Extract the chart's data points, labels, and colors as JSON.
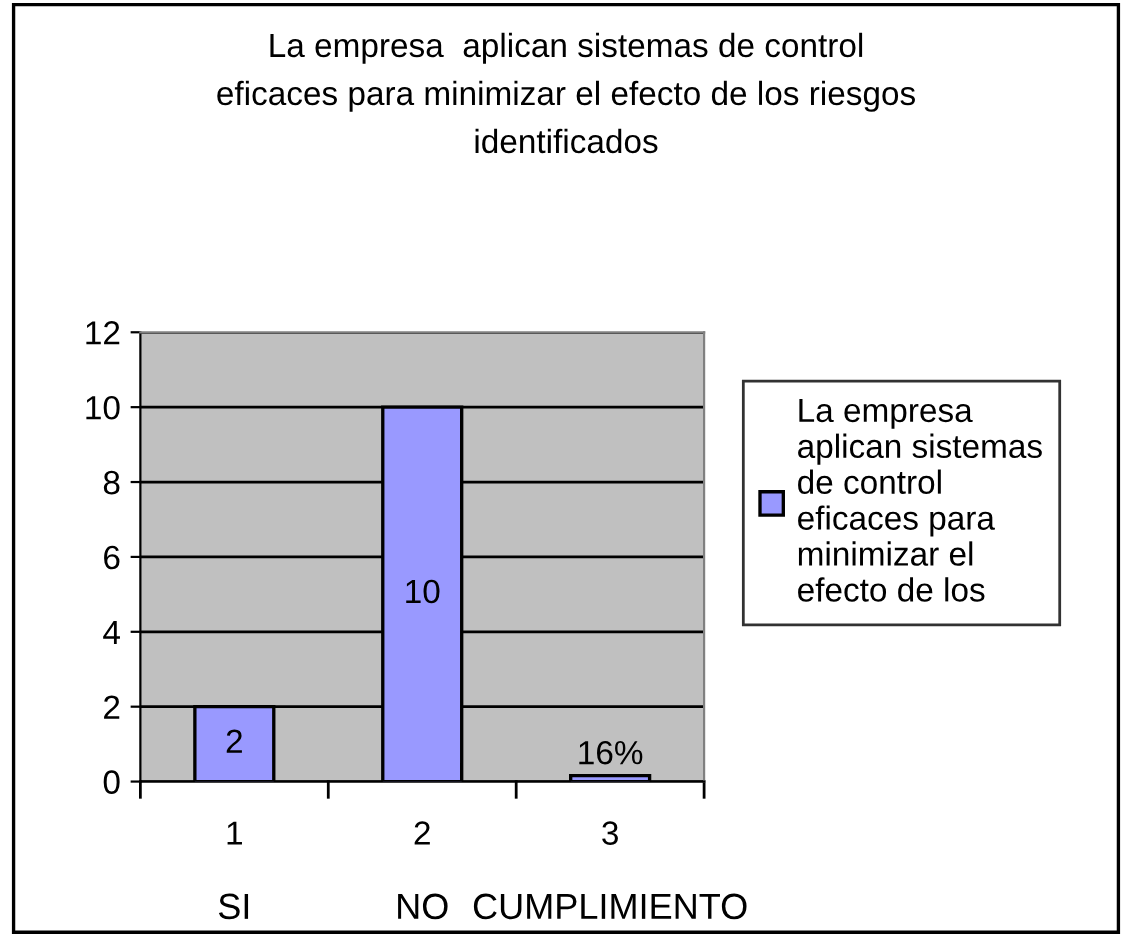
{
  "chart_data": {
    "type": "bar",
    "title": "La empresa  aplican sistemas de control\neficaces para minimizar el efecto de los riesgos\nidentificados",
    "categories": [
      "1",
      "2",
      "3"
    ],
    "series": [
      {
        "name": "La empresa\naplican sistemas\nde control\neficaces para\nminimizar el\nefecto de los",
        "color": "#9999ff",
        "values": [
          2,
          10,
          0.16
        ],
        "value_labels": [
          "2",
          "10",
          "16%"
        ]
      }
    ],
    "annotations": [
      "SI",
      "NO",
      "CUMPLIMIENTO"
    ],
    "ylim": [
      0,
      12
    ],
    "yticks": [
      0,
      2,
      4,
      6,
      8,
      10,
      12
    ],
    "grid": "y",
    "legend": "right"
  }
}
